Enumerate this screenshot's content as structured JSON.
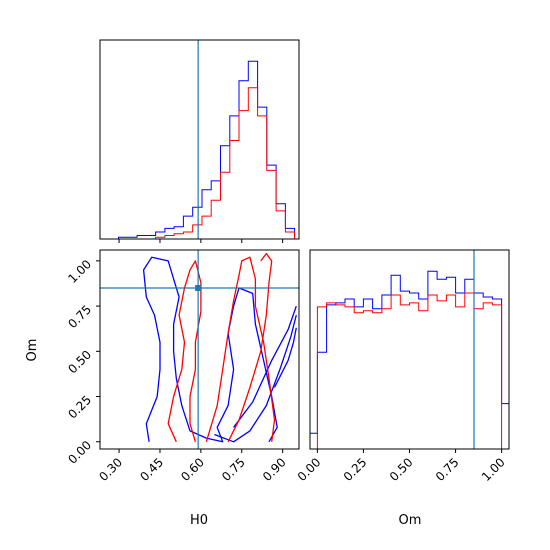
{
  "chart_data": [
    {
      "panel": "top-left",
      "type": "histogram",
      "variable": "H0",
      "xlim": [
        0.23,
        0.96
      ],
      "y_ticks_shown": false,
      "truth_line": 0.59,
      "bin_edges": [
        0.23,
        0.264,
        0.298,
        0.332,
        0.366,
        0.4,
        0.434,
        0.468,
        0.502,
        0.536,
        0.57,
        0.604,
        0.638,
        0.672,
        0.706,
        0.74,
        0.774,
        0.808,
        0.842,
        0.876,
        0.91,
        0.944
      ],
      "series": [
        {
          "color": "#0000ff",
          "counts": [
            0,
            0,
            1,
            1,
            2,
            2,
            4,
            6,
            7,
            13,
            18,
            28,
            33,
            53,
            70,
            90,
            101,
            75,
            42,
            20,
            6
          ]
        },
        {
          "color": "#ff0000",
          "counts": [
            0,
            0,
            0,
            0,
            0,
            0,
            1,
            2,
            3,
            4,
            8,
            13,
            22,
            38,
            56,
            73,
            86,
            70,
            39,
            16,
            4
          ]
        }
      ]
    },
    {
      "panel": "bottom-left",
      "type": "contour",
      "xlabel": "H0",
      "ylabel": "Om",
      "xlim": [
        0.23,
        0.96
      ],
      "ylim": [
        -0.04,
        1.06
      ],
      "xticks": [
        "0.30",
        "0.45",
        "0.60",
        "0.75",
        "0.90"
      ],
      "xtick_values": [
        0.3,
        0.45,
        0.6,
        0.75,
        0.9
      ],
      "yticks": [
        "0.00",
        "0.25",
        "0.50",
        "0.75",
        "1.00"
      ],
      "ytick_values": [
        0.0,
        0.25,
        0.5,
        0.75,
        1.0
      ],
      "truth_point": {
        "H0": 0.59,
        "Om": 0.85
      },
      "series": [
        {
          "color": "#0000ff",
          "contours": [
            [
              [
                0.41,
                0.0
              ],
              [
                0.4,
                0.1
              ],
              [
                0.44,
                0.25
              ],
              [
                0.45,
                0.4
              ],
              [
                0.45,
                0.55
              ],
              [
                0.43,
                0.7
              ],
              [
                0.4,
                0.8
              ],
              [
                0.39,
                0.95
              ],
              [
                0.42,
                1.02
              ],
              [
                0.48,
                1.0
              ],
              [
                0.5,
                0.9
              ],
              [
                0.52,
                0.8
              ],
              [
                0.5,
                0.65
              ],
              [
                0.5,
                0.5
              ],
              [
                0.51,
                0.35
              ],
              [
                0.53,
                0.2
              ],
              [
                0.56,
                0.06
              ],
              [
                0.62,
                0.02
              ],
              [
                0.68,
                0.0
              ],
              [
                0.66,
                0.08
              ],
              [
                0.7,
                0.2
              ],
              [
                0.72,
                0.4
              ],
              [
                0.7,
                0.6
              ],
              [
                0.72,
                0.75
              ],
              [
                0.74,
                0.85
              ],
              [
                0.79,
                0.82
              ],
              [
                0.8,
                0.65
              ],
              [
                0.83,
                0.45
              ],
              [
                0.86,
                0.25
              ],
              [
                0.88,
                0.08
              ],
              [
                0.85,
                0.0
              ]
            ],
            [
              [
                0.65,
                0.04
              ],
              [
                0.72,
                0.0
              ],
              [
                0.78,
                0.06
              ],
              [
                0.84,
                0.2
              ],
              [
                0.89,
                0.4
              ],
              [
                0.93,
                0.58
              ],
              [
                0.95,
                0.7
              ]
            ],
            [
              [
                0.72,
                0.08
              ],
              [
                0.79,
                0.22
              ],
              [
                0.86,
                0.45
              ],
              [
                0.92,
                0.62
              ],
              [
                0.95,
                0.75
              ]
            ],
            [
              [
                0.87,
                0.3
              ],
              [
                0.92,
                0.45
              ],
              [
                0.94,
                0.55
              ],
              [
                0.95,
                0.63
              ]
            ]
          ]
        },
        {
          "color": "#ff0000",
          "contours": [
            [
              [
                0.51,
                0.0
              ],
              [
                0.48,
                0.1
              ],
              [
                0.5,
                0.25
              ],
              [
                0.53,
                0.4
              ],
              [
                0.54,
                0.55
              ],
              [
                0.52,
                0.7
              ],
              [
                0.54,
                0.85
              ],
              [
                0.56,
                0.95
              ],
              [
                0.58,
                1.0
              ],
              [
                0.6,
                0.88
              ],
              [
                0.6,
                0.72
              ],
              [
                0.58,
                0.55
              ],
              [
                0.58,
                0.4
              ],
              [
                0.56,
                0.25
              ],
              [
                0.56,
                0.1
              ],
              [
                0.58,
                0.0
              ]
            ],
            [
              [
                0.62,
                0.0
              ],
              [
                0.64,
                0.1
              ],
              [
                0.66,
                0.2
              ],
              [
                0.68,
                0.4
              ],
              [
                0.7,
                0.6
              ],
              [
                0.72,
                0.78
              ],
              [
                0.74,
                0.92
              ],
              [
                0.75,
                1.0
              ],
              [
                0.78,
                1.02
              ],
              [
                0.8,
                0.9
              ],
              [
                0.8,
                0.75
              ],
              [
                0.83,
                0.55
              ],
              [
                0.85,
                0.35
              ],
              [
                0.87,
                0.12
              ],
              [
                0.86,
                0.0
              ]
            ],
            [
              [
                0.7,
                0.0
              ],
              [
                0.74,
                0.12
              ],
              [
                0.78,
                0.3
              ],
              [
                0.82,
                0.5
              ],
              [
                0.84,
                0.7
              ],
              [
                0.85,
                0.88
              ],
              [
                0.86,
                1.0
              ],
              [
                0.84,
                1.04
              ],
              [
                0.82,
                1.0
              ]
            ]
          ]
        }
      ]
    },
    {
      "panel": "bottom-right",
      "type": "histogram",
      "variable": "Om",
      "xlabel": "Om",
      "xlim": [
        -0.04,
        1.04
      ],
      "xticks": [
        "0.00",
        "0.25",
        "0.50",
        "0.75",
        "1.00"
      ],
      "xtick_values": [
        0.0,
        0.25,
        0.5,
        0.75,
        1.0
      ],
      "y_ticks_shown": false,
      "truth_line": 0.85,
      "bin_edges": [
        -0.04,
        0.0,
        0.05,
        0.1,
        0.15,
        0.2,
        0.25,
        0.3,
        0.35,
        0.4,
        0.45,
        0.5,
        0.55,
        0.6,
        0.65,
        0.7,
        0.75,
        0.8,
        0.85,
        0.9,
        0.95,
        1.0,
        1.04
      ],
      "series": [
        {
          "color": "#0000ff",
          "counts": [
            8,
            49,
            73,
            74,
            76,
            72,
            76,
            71,
            78,
            88,
            80,
            79,
            76,
            90,
            86,
            87,
            79,
            86,
            79,
            77,
            76,
            23
          ]
        },
        {
          "color": "#ff0000",
          "counts": [
            0,
            72,
            74,
            73,
            72,
            69,
            70,
            69,
            71,
            78,
            73,
            74,
            70,
            78,
            75,
            78,
            72,
            79,
            71,
            74,
            73,
            0
          ]
        }
      ]
    }
  ],
  "labels": {
    "bottom_left_xlabel": "H0",
    "bottom_left_ylabel": "Om",
    "bottom_right_xlabel": "Om"
  },
  "colors": {
    "series_blue": "#0000ff",
    "series_red": "#ff0000",
    "truth": "#1f77b4",
    "axes": "#000000"
  }
}
